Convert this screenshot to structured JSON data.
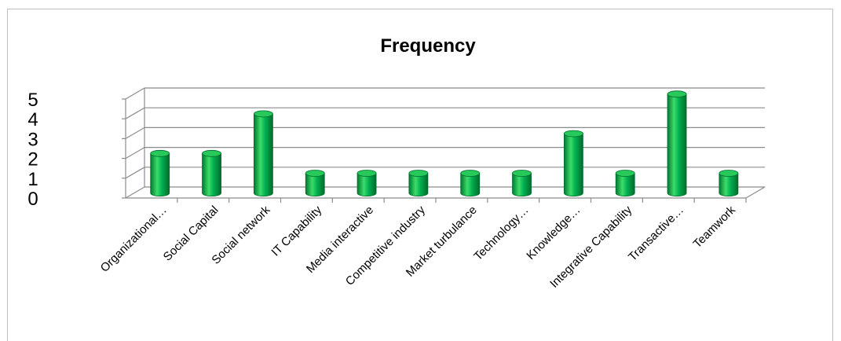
{
  "chart_data": {
    "type": "bar",
    "title": "Frequency",
    "xlabel": "",
    "ylabel": "",
    "categories": [
      "Organizational…",
      "Social Capital",
      "Social network",
      "IT Capability",
      "Media interactive",
      "Competitive industry",
      "Market turbulance",
      "Technology…",
      "Knowledge…",
      "Integrative  Capability",
      "Transactive…",
      "Teamwork"
    ],
    "values": [
      2,
      2,
      4,
      1,
      1,
      1,
      1,
      1,
      3,
      1,
      5,
      1
    ],
    "ylim": [
      0,
      5
    ],
    "yticks": [
      "0",
      "1",
      "2",
      "3",
      "4",
      "5"
    ],
    "grid": true,
    "legend": "none",
    "bar_style": "3d-cylinder",
    "colors": {
      "bar_light": "#3ddc6a",
      "bar_main": "#00b050",
      "bar_dark": "#007a32",
      "bar_top": "#27c95a",
      "gridline": "#8c8c8c",
      "frame": "#bfbfbf",
      "text": "#000000"
    }
  }
}
